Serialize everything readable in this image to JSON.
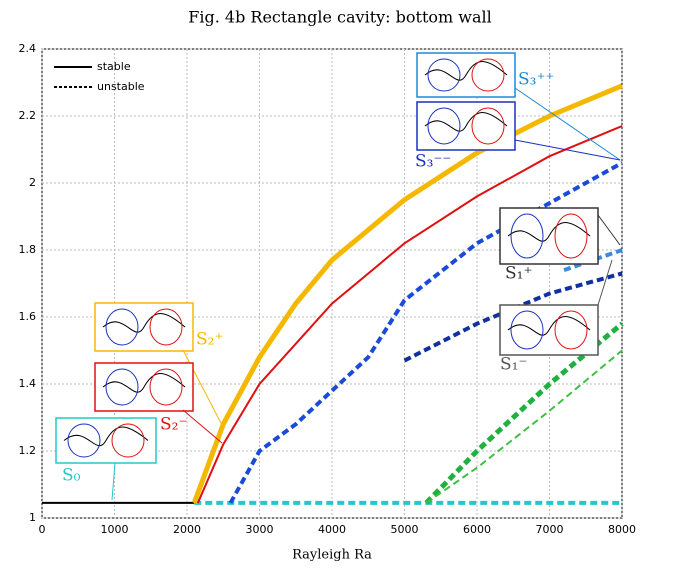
{
  "chart_data": {
    "type": "line",
    "title": "Fig. 4b    Rectangle cavity: bottom wall",
    "xlabel": "Rayleigh Ra",
    "xlim": [
      0,
      8000
    ],
    "ylim": [
      1,
      2.4
    ],
    "xticks": [
      0,
      1000,
      2000,
      3000,
      4000,
      5000,
      6000,
      7000,
      8000
    ],
    "yticks": [
      1,
      1.2,
      1.4,
      1.6,
      1.8,
      2,
      2.2,
      2.4
    ],
    "grid": true,
    "legend": [
      {
        "label": "stable",
        "style": "solid"
      },
      {
        "label": "unstable",
        "style": "dashed"
      }
    ],
    "series": [
      {
        "color": "#000000",
        "style": "solid",
        "x": [
          0,
          2100
        ],
        "y": [
          1.045,
          1.045
        ]
      },
      {
        "color": "#22c8cc",
        "style": "dashed",
        "x": [
          2100,
          8000
        ],
        "y": [
          1.045,
          1.045
        ]
      },
      {
        "color": "#f5b800",
        "style": "solid",
        "x": [
          2100,
          2500,
          3000,
          3500,
          4000,
          5000,
          6000,
          7000,
          8000
        ],
        "y": [
          1.045,
          1.28,
          1.48,
          1.64,
          1.77,
          1.95,
          2.09,
          2.2,
          2.29
        ]
      },
      {
        "color": "#e01010",
        "style": "solid",
        "x": [
          2150,
          2500,
          3000,
          4000,
          5000,
          6000,
          7000,
          8000
        ],
        "y": [
          1.045,
          1.22,
          1.4,
          1.64,
          1.82,
          1.96,
          2.08,
          2.17
        ]
      },
      {
        "color": "#1a4ad8",
        "style": "dashed",
        "x": [
          2600,
          3000,
          3500,
          4000,
          4500,
          5000,
          6000,
          7000,
          8000
        ],
        "y": [
          1.045,
          1.2,
          1.28,
          1.38,
          1.48,
          1.65,
          1.82,
          1.94,
          2.06
        ]
      },
      {
        "color": "#1030a0",
        "style": "dashed",
        "x": [
          5000,
          6000,
          7000,
          8000
        ],
        "y": [
          1.47,
          1.58,
          1.67,
          1.73
        ]
      },
      {
        "color": "#3a8ae0",
        "style": "dashed",
        "x": [
          7200,
          7600,
          8000
        ],
        "y": [
          1.74,
          1.77,
          1.8
        ]
      },
      {
        "color": "#20b040",
        "style": "dashed",
        "x": [
          5300,
          6000,
          7000,
          8000
        ],
        "y": [
          1.045,
          1.2,
          1.4,
          1.58
        ]
      },
      {
        "color": "#40c040",
        "style": "dashed",
        "x": [
          5300,
          6000,
          7000,
          8000
        ],
        "y": [
          1.045,
          1.15,
          1.32,
          1.5
        ]
      }
    ],
    "annotations": [
      {
        "text": "S₀",
        "color": "#22c8cc"
      },
      {
        "text": "S₂⁺",
        "color": "#f5b800"
      },
      {
        "text": "S₂⁻",
        "color": "#e01010"
      },
      {
        "text": "S₃⁺⁺",
        "color": "#1a8ad8"
      },
      {
        "text": "S₃⁻⁻",
        "color": "#1a30c0"
      },
      {
        "text": "S₁⁺",
        "color": "#333333"
      },
      {
        "text": "S₁⁻",
        "color": "#555555"
      }
    ]
  }
}
